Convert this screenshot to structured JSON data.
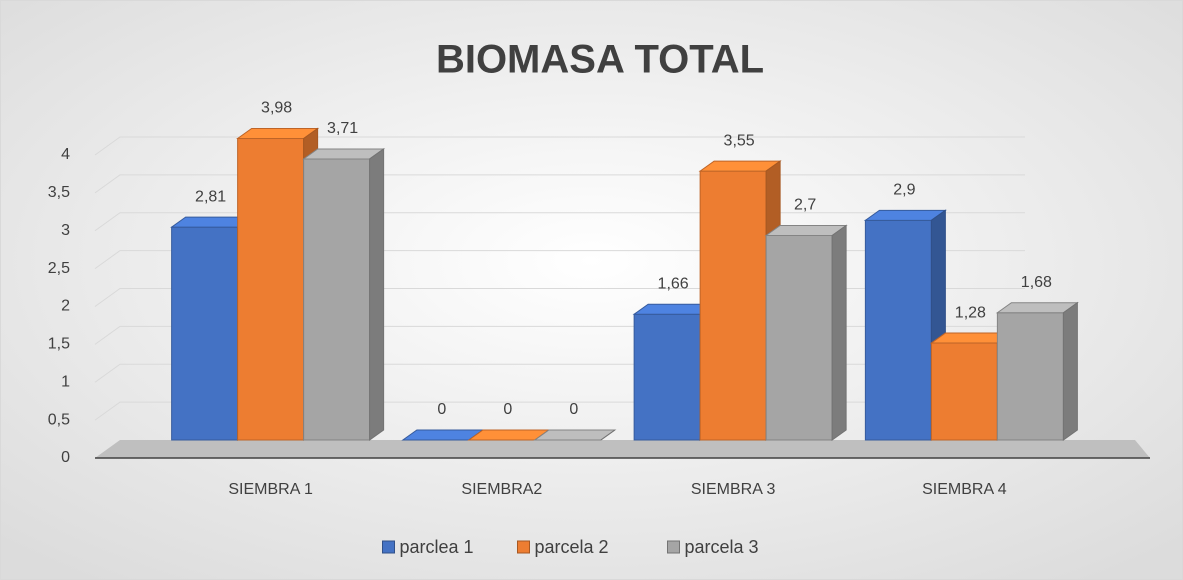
{
  "chart_data": {
    "type": "bar3d",
    "title": "BIOMASA TOTAL",
    "categories": [
      "SIEMBRA 1",
      "SIEMBRA2",
      "SIEMBRA 3",
      "SIEMBRA 4"
    ],
    "series": [
      {
        "name": "parclea 1",
        "color": "#4472c4",
        "values": [
          2.81,
          0,
          1.66,
          2.9
        ],
        "value_labels": [
          "2,81",
          "0",
          "1,66",
          "2,9"
        ]
      },
      {
        "name": "parcela 2",
        "color": "#ed7d31",
        "values": [
          3.98,
          0,
          3.55,
          1.28
        ],
        "value_labels": [
          "3,98",
          "0",
          "3,55",
          "1,28"
        ]
      },
      {
        "name": "parcela 3",
        "color": "#a5a5a5",
        "values": [
          3.71,
          0,
          2.7,
          1.68
        ],
        "value_labels": [
          "3,71",
          "0",
          "2,7",
          "1,68"
        ]
      }
    ],
    "ylim": [
      0,
      4
    ],
    "yticks": [
      0,
      {
        "value": 0.5,
        "label": "0,5"
      },
      1,
      {
        "value": 1.5,
        "label": "1,5"
      },
      2,
      {
        "value": 2.5,
        "label": "2,5"
      },
      3,
      {
        "value": 3.5,
        "label": "3,5"
      },
      4
    ],
    "grid": true,
    "legend": "bottom"
  }
}
